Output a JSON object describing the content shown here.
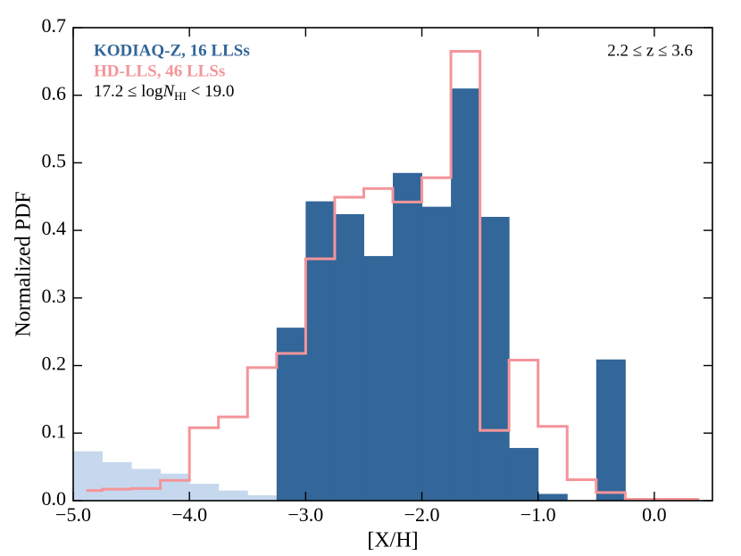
{
  "chart_data": {
    "type": "histogram",
    "xlabel": "[X/H]",
    "ylabel": "Normalized PDF",
    "xlim": [
      -5.0,
      0.5
    ],
    "ylim": [
      0,
      0.7
    ],
    "xticks": [
      {
        "value": -5,
        "label": "−5.0"
      },
      {
        "value": -4,
        "label": "−4.0"
      },
      {
        "value": -3,
        "label": "−3.0"
      },
      {
        "value": -2,
        "label": "−2.0"
      },
      {
        "value": -1,
        "label": "−1.0"
      },
      {
        "value": 0,
        "label": "0.0"
      }
    ],
    "yticks": [
      {
        "value": 0,
        "label": "0.0"
      },
      0.1,
      0.2,
      0.3,
      0.4,
      0.5,
      0.6,
      0.7
    ],
    "series": [
      {
        "color": "#c6d8ee",
        "style": "filled",
        "bins": [
          -5.0,
          -4.75,
          -4.5,
          -4.25,
          -4.0,
          -3.75,
          -3.5,
          -3.25
        ],
        "values": [
          0.073,
          0.057,
          0.047,
          0.04,
          0.025,
          0.015,
          0.008
        ]
      },
      {
        "name": "KODIAQ-Z, 16 LLSs",
        "color": "#336699",
        "style": "filled",
        "bins": [
          -3.25,
          -3.0,
          -2.75,
          -2.5,
          -2.25,
          -2.0,
          -1.75,
          -1.5,
          -1.25,
          -1.0,
          -0.75,
          -0.5,
          -0.25
        ],
        "values": [
          0.256,
          0.443,
          0.424,
          0.362,
          0.485,
          0.435,
          0.61,
          0.42,
          0.078,
          0.01,
          0,
          0.209
        ]
      },
      {
        "name": "HD-LLS, 46 LLSs",
        "color": "#f4959a",
        "style": "step",
        "bins": [
          -4.875,
          -4.75,
          -4.5,
          -4.25,
          -4.0,
          -3.75,
          -3.5,
          -3.25,
          -3.0,
          -2.75,
          -2.5,
          -2.25,
          -2.0,
          -1.75,
          -1.5,
          -1.25,
          -1.0,
          -0.75,
          -0.5,
          -0.25,
          0.0,
          0.25,
          0.375
        ],
        "values": [
          0.015,
          0.017,
          0.018,
          0.03,
          0.108,
          0.124,
          0.197,
          0.218,
          0.358,
          0.449,
          0.462,
          0.442,
          0.478,
          0.665,
          0.104,
          0.208,
          0.11,
          0.031,
          0.012,
          0.002,
          0.002,
          0.002
        ]
      }
    ],
    "annotations": {
      "nhi": {
        "prefix": "17.2 ≤ log",
        "var": "N",
        "sub": "HI",
        "suffix": " < 19.0"
      },
      "z": "2.2 ≤ z ≤ 3.6"
    }
  }
}
